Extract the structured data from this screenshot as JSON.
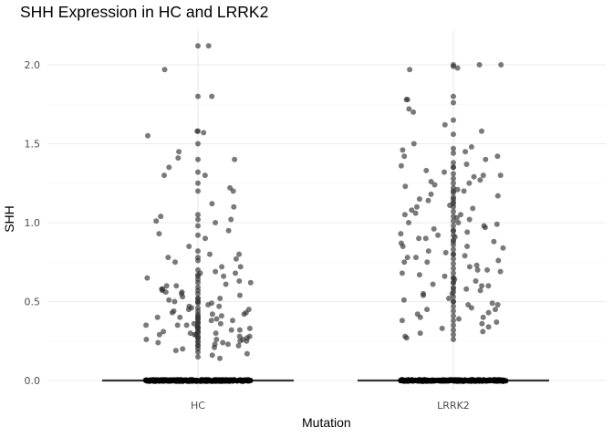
{
  "chart_data": {
    "type": "scatter",
    "subtype": "jittered strip with boxplot",
    "title": "SHH Expression in HC and LRRK2",
    "xlabel": "Mutation",
    "ylabel": "SHH",
    "categories": [
      "HC",
      "LRRK2"
    ],
    "ylim": [
      0,
      2.2
    ],
    "yticks": [
      "0.0",
      "0.5",
      "1.0",
      "1.5",
      "2.0"
    ],
    "grid": true,
    "legend": "none",
    "colors": {
      "point": "#333333",
      "box": "#333333",
      "grid": "#ebebeb"
    },
    "series": [
      {
        "category": "HC",
        "boxplot": {
          "median": 0.0,
          "q1": 0.0,
          "q3": 0.0,
          "whisker_low": 0.0,
          "whisker_high": 0.0
        },
        "points_at_zero": "dense",
        "values": [
          2.12,
          2.12,
          1.97,
          1.8,
          1.8,
          1.58,
          1.58,
          1.57,
          1.55,
          1.5,
          1.45,
          1.41,
          1.4,
          1.4,
          1.35,
          1.32,
          1.3,
          1.3,
          1.25,
          1.22,
          1.2,
          1.2,
          1.12,
          1.1,
          1.05,
          1.04,
          1.02,
          1.02,
          1.01,
          1.0,
          0.98,
          0.95,
          0.93,
          0.92,
          0.9,
          0.85,
          0.82,
          0.8,
          0.8,
          0.78,
          0.78,
          0.77,
          0.76,
          0.75,
          0.72,
          0.7,
          0.69,
          0.68,
          0.67,
          0.66,
          0.65,
          0.64,
          0.63,
          0.62,
          0.62,
          0.61,
          0.6,
          0.59,
          0.58,
          0.58,
          0.57,
          0.56,
          0.56,
          0.55,
          0.54,
          0.53,
          0.52,
          0.52,
          0.51,
          0.5,
          0.5,
          0.49,
          0.49,
          0.48,
          0.47,
          0.46,
          0.46,
          0.45,
          0.44,
          0.44,
          0.43,
          0.42,
          0.42,
          0.41,
          0.41,
          0.4,
          0.4,
          0.39,
          0.39,
          0.38,
          0.37,
          0.37,
          0.36,
          0.36,
          0.35,
          0.35,
          0.34,
          0.34,
          0.33,
          0.33,
          0.32,
          0.32,
          0.31,
          0.31,
          0.3,
          0.3,
          0.29,
          0.29,
          0.28,
          0.28,
          0.27,
          0.27,
          0.26,
          0.26,
          0.25,
          0.25,
          0.24,
          0.24,
          0.23,
          0.23,
          0.22,
          0.22,
          0.21,
          0.2,
          0.2,
          0.19,
          0.18,
          0.17,
          0.16,
          0.15,
          0.14,
          0.72,
          0.66,
          0.6,
          0.55,
          0.5,
          0.47,
          0.43,
          0.4,
          0.38,
          0.35,
          0.33,
          0.3,
          0.28,
          0.27,
          0.25,
          0.24,
          0.22,
          0.68,
          0.57,
          0.52,
          0.45,
          0.42,
          0.39,
          0.36,
          0.34,
          0.31,
          0.29,
          0.26
        ]
      },
      {
        "category": "LRRK2",
        "boxplot": {
          "median": 0.0,
          "q1": 0.0,
          "q3": 0.0,
          "whisker_low": 0.0,
          "whisker_high": 0.0
        },
        "points_at_zero": "dense",
        "values": [
          2.0,
          2.0,
          2.0,
          1.99,
          1.98,
          1.97,
          1.8,
          1.78,
          1.78,
          1.76,
          1.72,
          1.7,
          1.65,
          1.62,
          1.58,
          1.56,
          1.5,
          1.48,
          1.47,
          1.46,
          1.45,
          1.44,
          1.42,
          1.4,
          1.38,
          1.37,
          1.36,
          1.35,
          1.33,
          1.32,
          1.31,
          1.3,
          1.29,
          1.28,
          1.27,
          1.26,
          1.25,
          1.24,
          1.23,
          1.22,
          1.21,
          1.2,
          1.19,
          1.18,
          1.17,
          1.16,
          1.15,
          1.14,
          1.13,
          1.12,
          1.11,
          1.1,
          1.09,
          1.08,
          1.07,
          1.06,
          1.05,
          1.04,
          1.03,
          1.02,
          1.01,
          1.0,
          0.99,
          0.98,
          0.97,
          0.96,
          0.95,
          0.94,
          0.93,
          0.92,
          0.91,
          0.9,
          0.89,
          0.88,
          0.87,
          0.86,
          0.85,
          0.84,
          0.83,
          0.82,
          0.81,
          0.8,
          0.79,
          0.78,
          0.77,
          0.76,
          0.75,
          0.74,
          0.73,
          0.72,
          0.71,
          0.7,
          0.69,
          0.68,
          0.67,
          0.66,
          0.65,
          0.64,
          0.63,
          0.62,
          0.61,
          0.6,
          0.59,
          0.58,
          0.57,
          0.56,
          0.55,
          0.54,
          0.53,
          0.52,
          0.51,
          0.5,
          0.49,
          0.48,
          0.47,
          0.46,
          0.45,
          0.44,
          0.43,
          0.42,
          0.41,
          0.4,
          0.39,
          0.38,
          0.37,
          0.36,
          0.35,
          0.34,
          0.33,
          0.32,
          0.31,
          0.3,
          0.29,
          0.28,
          0.27,
          0.26,
          1.42,
          1.3,
          1.2,
          1.1,
          1.0,
          0.95,
          0.9,
          0.85,
          0.8,
          0.75,
          0.7,
          0.65,
          0.6,
          0.55,
          0.5,
          0.45,
          0.4,
          1.15,
          1.05,
          0.98,
          0.88,
          0.78,
          0.68,
          0.58,
          0.48,
          0.38,
          1.35,
          1.25,
          0.92,
          0.62
        ]
      }
    ]
  }
}
